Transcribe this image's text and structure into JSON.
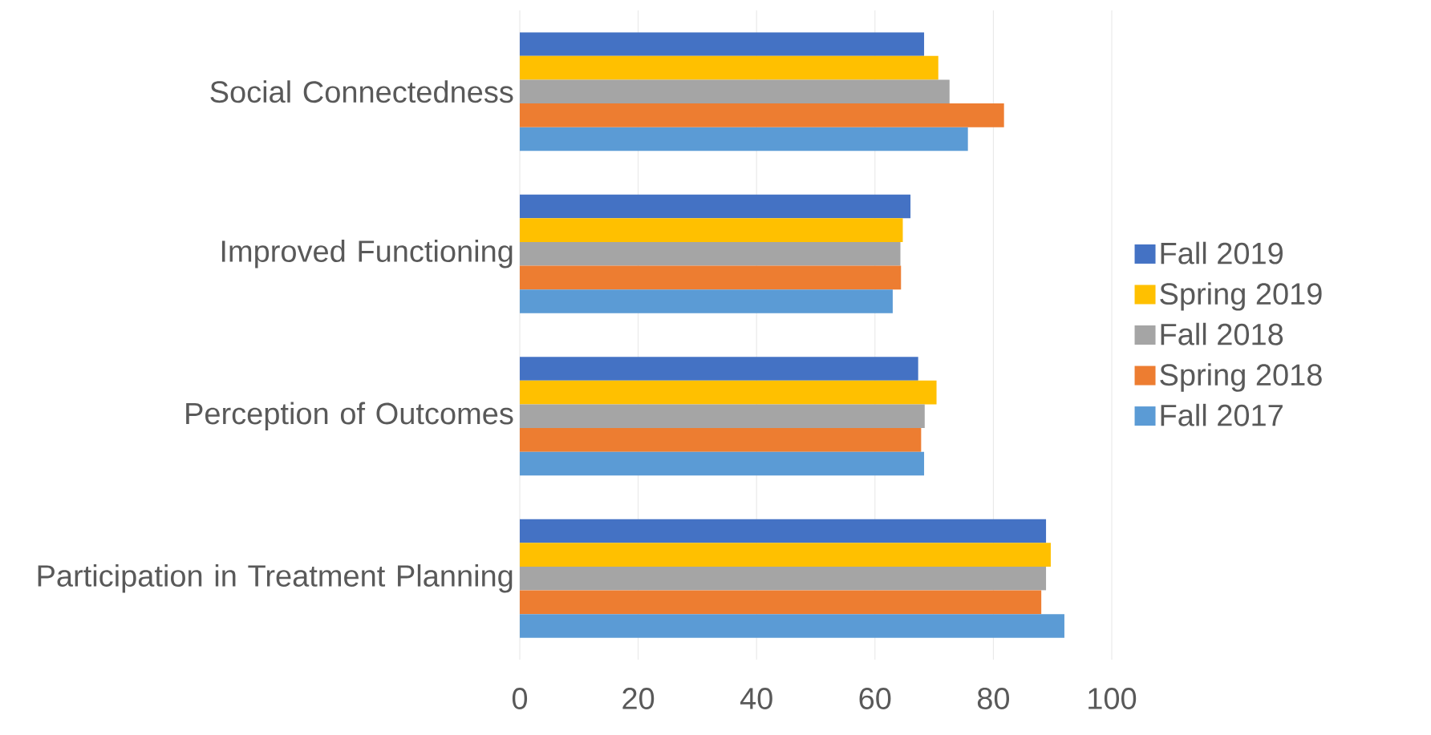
{
  "chart_data": {
    "type": "bar",
    "orientation": "horizontal",
    "categories": [
      "Social Connectedness",
      "Improved Functioning",
      "Perception of Outcomes",
      "Participation in Treatment Planning"
    ],
    "series": [
      {
        "name": "Fall 2019",
        "color": "#4472c4",
        "values": [
          68.3,
          66.0,
          67.3,
          88.9
        ]
      },
      {
        "name": "Spring 2019",
        "color": "#ffc000",
        "values": [
          70.7,
          64.7,
          70.4,
          89.7
        ]
      },
      {
        "name": "Fall 2018",
        "color": "#a5a5a5",
        "values": [
          72.6,
          64.3,
          68.4,
          88.9
        ]
      },
      {
        "name": "Spring 2018",
        "color": "#ed7d31",
        "values": [
          81.8,
          64.4,
          67.8,
          88.1
        ]
      },
      {
        "name": "Fall 2017",
        "color": "#5b9bd5",
        "values": [
          75.7,
          63.0,
          68.3,
          92.0
        ]
      }
    ],
    "xlim": [
      0,
      100
    ],
    "xticks": [
      0,
      20,
      40,
      60,
      80,
      100
    ],
    "grid": "x",
    "legend": "right"
  }
}
